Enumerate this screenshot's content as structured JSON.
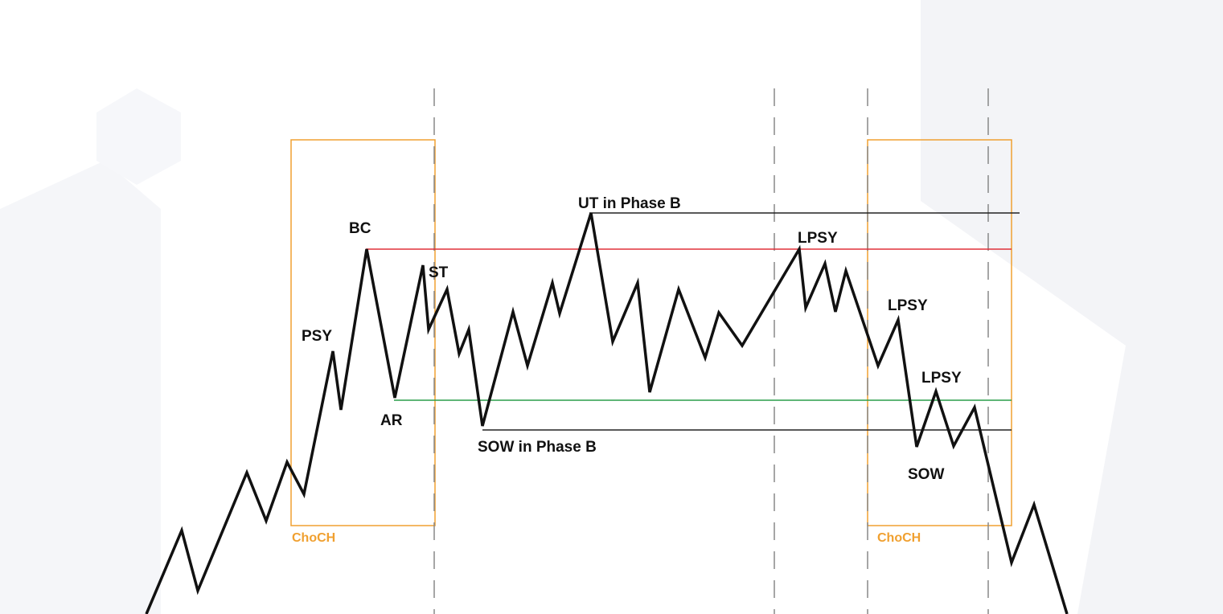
{
  "colors": {
    "background": "#ffffff",
    "price_line": "#111111",
    "choch_box": "#f0a030",
    "resistance": "#e0303a",
    "support": "#2a9d4a",
    "range_lines": "#222222",
    "phase_dividers": "#888888",
    "decor_shapes": "#eef0f4"
  },
  "labels": {
    "psy": "PSY",
    "bc": "BC",
    "ar": "AR",
    "st": "ST",
    "ut_phase_b": "UT in Phase B",
    "sow_phase_b": "SOW in Phase B",
    "lpsy_1": "LPSY",
    "lpsy_2": "LPSY",
    "lpsy_3": "LPSY",
    "sow": "SOW",
    "choch_left": "ChoCH",
    "choch_right": "ChoCH"
  }
}
